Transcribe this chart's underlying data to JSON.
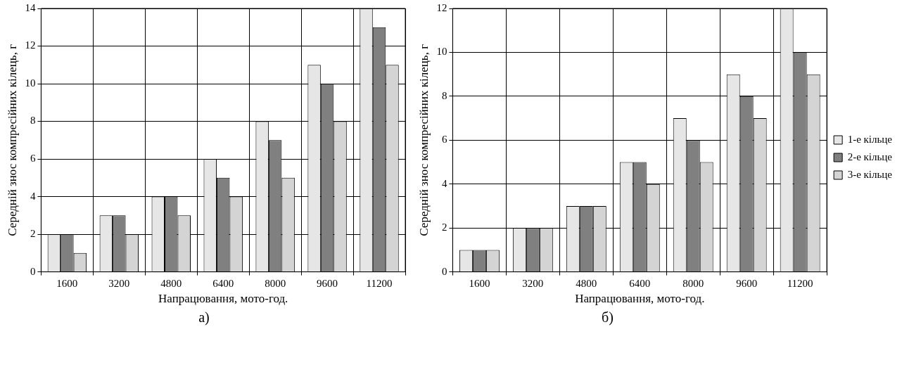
{
  "chart_data": [
    {
      "type": "bar",
      "xlabel": "Напрацювання, мото-год.",
      "ylabel": "Середній знос компресійних кілець, г",
      "categories": [
        "1600",
        "3200",
        "4800",
        "6400",
        "8000",
        "9600",
        "11200"
      ],
      "series": [
        {
          "color": "#e6e6e6",
          "values": [
            2,
            3,
            4,
            6,
            8,
            11,
            14
          ]
        },
        {
          "color": "#808080",
          "values": [
            2,
            3,
            4,
            5,
            7,
            10,
            13
          ]
        },
        {
          "color": "#d4d4d4",
          "values": [
            1,
            2,
            3,
            4,
            5,
            8,
            11
          ]
        }
      ],
      "ylim": [
        0,
        14
      ],
      "yticks": [
        0,
        2,
        4,
        6,
        8,
        10,
        12,
        14
      ],
      "grid": true,
      "legend": false,
      "annotations": [
        "а)"
      ]
    },
    {
      "type": "bar",
      "xlabel": "Напрацювання, мото-год.",
      "ylabel": "Середній знос компресійних кілець, г",
      "categories": [
        "1600",
        "3200",
        "4800",
        "6400",
        "8000",
        "9600",
        "11200"
      ],
      "series": [
        {
          "name": "1-е кільце",
          "color": "#e6e6e6",
          "values": [
            1,
            2,
            3,
            5,
            7,
            9,
            12
          ]
        },
        {
          "name": "2-е кільце",
          "color": "#808080",
          "values": [
            1,
            2,
            3,
            5,
            6,
            8,
            10
          ]
        },
        {
          "name": "3-е кільце",
          "color": "#d4d4d4",
          "values": [
            1,
            2,
            3,
            4,
            5,
            7,
            9
          ]
        }
      ],
      "ylim": [
        0,
        12
      ],
      "yticks": [
        0,
        2,
        4,
        6,
        8,
        10,
        12
      ],
      "grid": true,
      "legend": "right",
      "annotations": [
        "б)"
      ]
    }
  ]
}
